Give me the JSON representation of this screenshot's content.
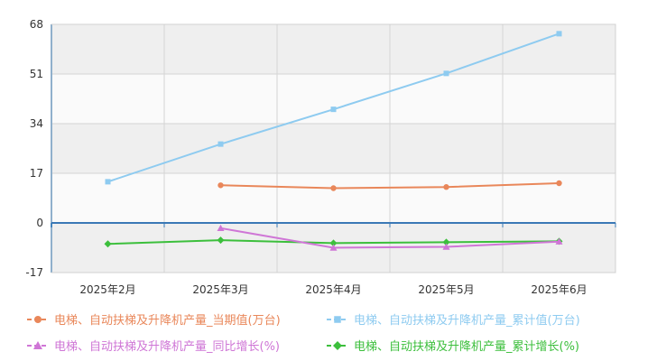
{
  "chart_data": {
    "type": "line",
    "categories": [
      "2025年2月",
      "2025年3月",
      "2025年4月",
      "2025年5月",
      "2025年6月"
    ],
    "ylim": [
      -17,
      68
    ],
    "yticks": [
      "68",
      "51",
      "34",
      "17",
      "0",
      "-17"
    ],
    "grid": true,
    "legend_position": "bottom",
    "series": [
      {
        "name": "电梯、自动扶梯及升降机产量_当期值(万台)",
        "color": "#e9875a",
        "marker": "circle",
        "values": [
          null,
          12.9,
          11.9,
          12.3,
          13.6
        ]
      },
      {
        "name": "电梯、自动扶梯及升降机产量_累计值(万台)",
        "color": "#8ecbf0",
        "marker": "square",
        "values": [
          14.1,
          27.0,
          38.9,
          51.2,
          64.8
        ]
      },
      {
        "name": "电梯、自动扶梯及升降机产量_同比增长(%)",
        "color": "#cf76d6",
        "marker": "triangle",
        "values": [
          null,
          -1.8,
          -8.5,
          -8.2,
          -6.4
        ]
      },
      {
        "name": "电梯、自动扶梯及升降机产量_累计增长(%)",
        "color": "#3cbf3c",
        "marker": "diamond",
        "values": [
          -7.2,
          -5.9,
          -6.9,
          -6.6,
          -6.3
        ]
      }
    ]
  }
}
